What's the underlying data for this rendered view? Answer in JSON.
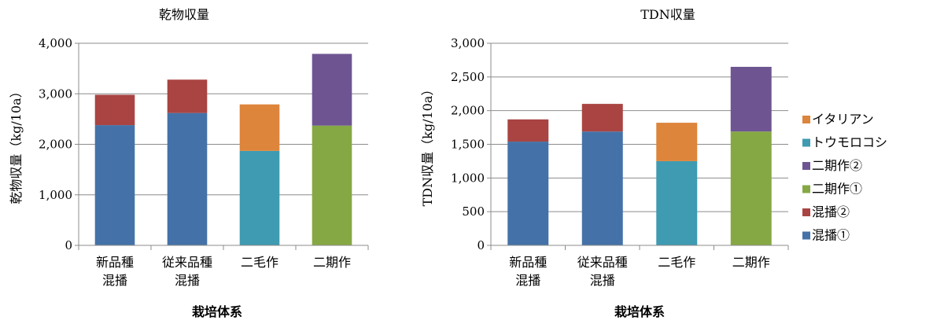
{
  "chart_data": [
    {
      "type": "bar",
      "stacked": true,
      "title": "乾物収量",
      "xlabel": "栽培体系",
      "ylabel": "乾物収量（kg/10a）",
      "ylim": [
        0,
        4000
      ],
      "yticks": [
        "0",
        "1,000",
        "2,000",
        "3,000",
        "4,000"
      ],
      "grid": true,
      "categories": [
        [
          "新品種",
          "混播"
        ],
        [
          "従来品種",
          "混播"
        ],
        [
          "二毛作"
        ],
        [
          "二期作"
        ]
      ],
      "series": [
        {
          "name": "混播①",
          "color": "#4472a8",
          "values": [
            2380,
            2620,
            null,
            null
          ]
        },
        {
          "name": "混播②",
          "color": "#a94442",
          "values": [
            600,
            660,
            null,
            null
          ]
        },
        {
          "name": "二期作①",
          "color": "#86a844",
          "values": [
            null,
            null,
            null,
            2370
          ]
        },
        {
          "name": "二期作②",
          "color": "#6e5592",
          "values": [
            null,
            null,
            null,
            1420
          ]
        },
        {
          "name": "トウモロコシ",
          "color": "#3e9bb1",
          "values": [
            null,
            null,
            1870,
            null
          ]
        },
        {
          "name": "イタリアン",
          "color": "#dd853b",
          "values": [
            null,
            null,
            920,
            null
          ]
        }
      ]
    },
    {
      "type": "bar",
      "stacked": true,
      "title": "TDN収量",
      "xlabel": "栽培体系",
      "ylabel": "TDN収量（kg/10a）",
      "ylim": [
        0,
        3000
      ],
      "yticks": [
        "0",
        "500",
        "1,000",
        "1,500",
        "2,000",
        "2,500",
        "3,000"
      ],
      "grid": true,
      "legend_position": "right",
      "categories": [
        [
          "新品種",
          "混播"
        ],
        [
          "従来品種",
          "混播"
        ],
        [
          "二毛作"
        ],
        [
          "二期作"
        ]
      ],
      "series": [
        {
          "name": "混播①",
          "color": "#4472a8",
          "values": [
            1540,
            1690,
            null,
            null
          ]
        },
        {
          "name": "混播②",
          "color": "#a94442",
          "values": [
            330,
            410,
            null,
            null
          ]
        },
        {
          "name": "二期作①",
          "color": "#86a844",
          "values": [
            null,
            null,
            null,
            1690
          ]
        },
        {
          "name": "二期作②",
          "color": "#6e5592",
          "values": [
            null,
            null,
            null,
            960
          ]
        },
        {
          "name": "トウモロコシ",
          "color": "#3e9bb1",
          "values": [
            null,
            null,
            1250,
            null
          ]
        },
        {
          "name": "イタリアン",
          "color": "#dd853b",
          "values": [
            null,
            null,
            570,
            null
          ]
        }
      ],
      "legend_order": [
        "イタリアン",
        "トウモロコシ",
        "二期作②",
        "二期作①",
        "混播②",
        "混播①"
      ]
    }
  ]
}
